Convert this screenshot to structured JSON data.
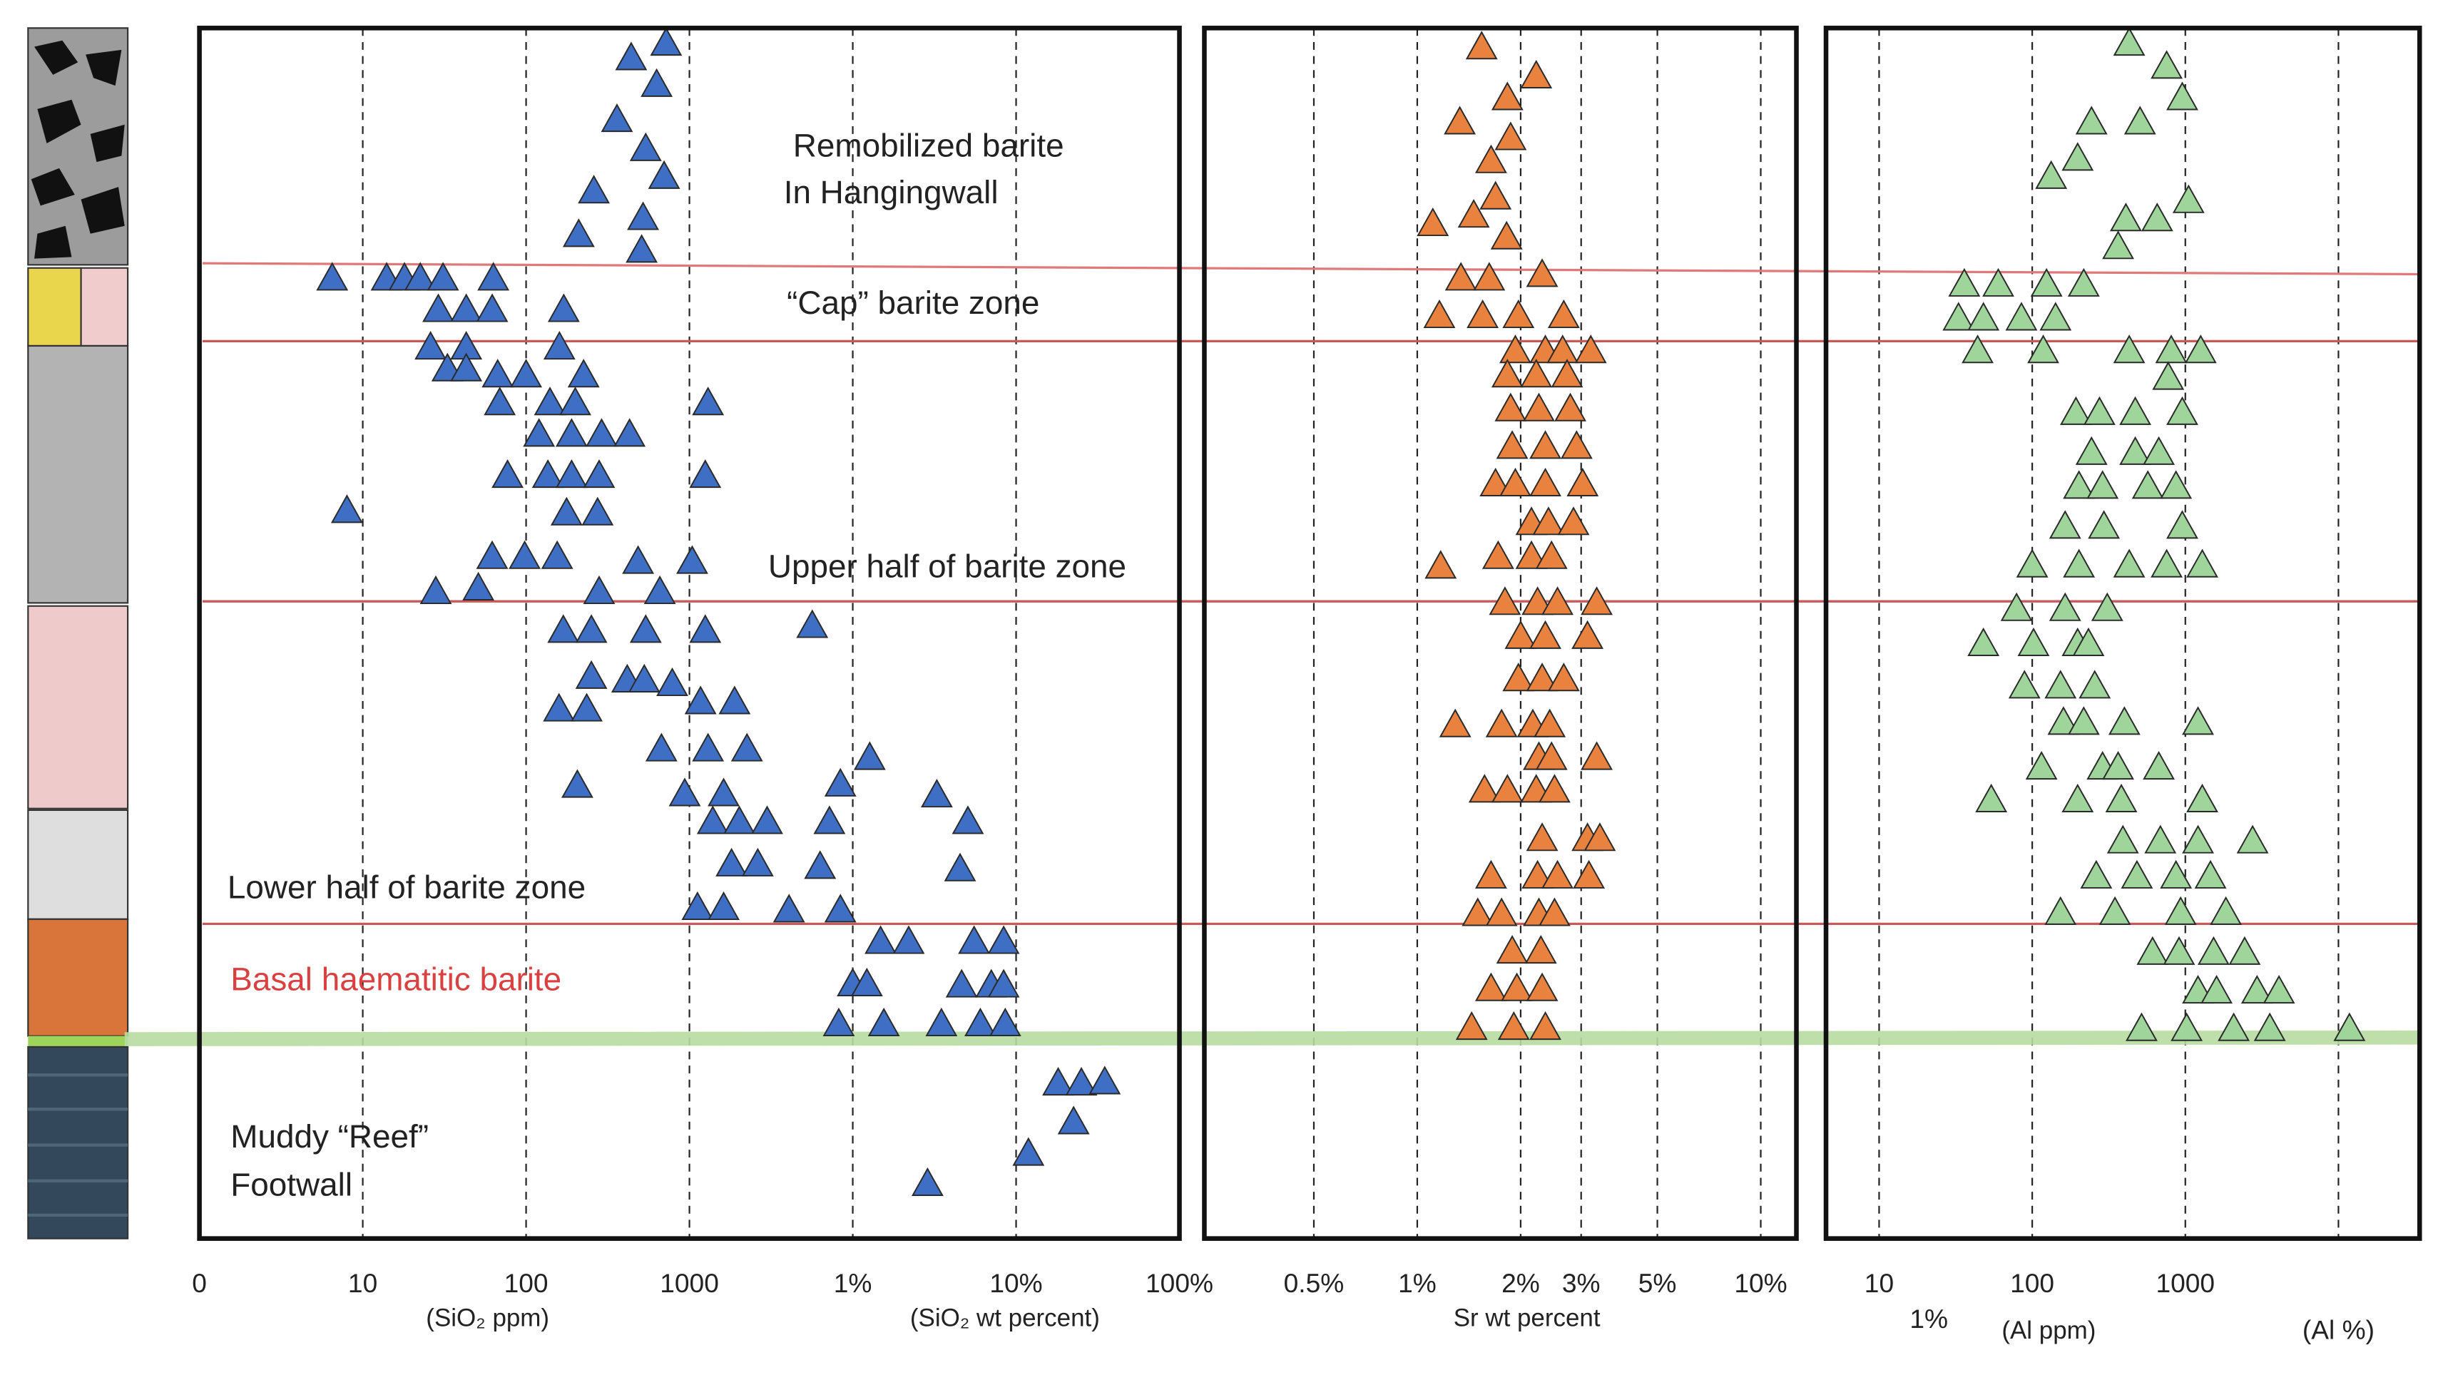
{
  "annotations": [
    {
      "text": "Remobilized barite",
      "color": "#222222"
    },
    {
      "text": "In Hangingwall",
      "color": "#222222"
    },
    {
      "text": "“Cap” barite zone",
      "color": "#222222"
    },
    {
      "text": "Upper half of barite zone",
      "color": "#222222"
    },
    {
      "text": "Lower half of barite zone",
      "color": "#222222"
    },
    {
      "text": "Basal haematitic barite",
      "color": "#d94040"
    },
    {
      "text": "Muddy “Reef”",
      "color": "#222222"
    },
    {
      "text": "Footwall",
      "color": "#222222"
    }
  ],
  "chart_data": [
    {
      "type": "scatter",
      "log_x": true,
      "grid": "x",
      "color": "#3f6fc4",
      "xlabel": [
        "(SiO₂  ppm)",
        "(SiO₂ wt percent)"
      ],
      "xlim": [
        1,
        1000000
      ],
      "ylim": [
        0,
        100
      ],
      "xticks": [
        {
          "value": 1,
          "label": "0"
        },
        10,
        100,
        1000,
        {
          "value": 10000,
          "label": "1%"
        },
        {
          "value": 100000,
          "label": "10%"
        },
        {
          "value": 1000000,
          "label": "100%"
        }
      ],
      "x": [
        720,
        440,
        630,
        360,
        540,
        700,
        260,
        520,
        210,
        510,
        6.5,
        14,
        18,
        22.5,
        31,
        63,
        29,
        43,
        62,
        170,
        26,
        43,
        160,
        33,
        43,
        67,
        100,
        225,
        69,
        140,
        200,
        1300,
        120,
        190,
        290,
        430,
        77,
        136,
        190,
        280,
        1250,
        8,
        177,
        274,
        62,
        98,
        155,
        485,
        1040,
        28,
        51,
        280,
        659,
        5650,
        169,
        251,
        540,
        1250,
        251,
        416,
        529,
        785,
        1170,
        1890,
        159,
        235,
        674,
        1300,
        2250,
        12700,
        206,
        936,
        1620,
        8400,
        32700,
        1390,
        2020,
        2990,
        7200,
        50700,
        1810,
        2620,
        6310,
        45400,
        1120,
        1620,
        4070,
        8400,
        14800,
        22000,
        55300,
        83900,
        10000,
        12200,
        46400,
        70500,
        83900,
        8210,
        15500,
        34900,
        60400,
        85800,
        181000,
        251000,
        349000,
        225000,
        119000,
        28700
      ],
      "y": [
        1.2,
        2.4,
        4.6,
        7.5,
        9.9,
        12.2,
        13.4,
        15.6,
        17,
        18.3,
        20.6,
        20.6,
        20.6,
        20.6,
        20.6,
        20.6,
        23.2,
        23.2,
        23.2,
        23.2,
        26.3,
        26.3,
        26.3,
        28.1,
        28.1,
        28.6,
        28.6,
        28.6,
        30.9,
        30.9,
        30.9,
        30.9,
        33.5,
        33.5,
        33.5,
        33.5,
        36.9,
        36.9,
        36.9,
        36.9,
        36.9,
        39.8,
        40,
        40,
        43.6,
        43.6,
        43.6,
        44,
        44,
        46.5,
        46.2,
        46.5,
        46.5,
        49.3,
        49.7,
        49.7,
        49.7,
        49.7,
        53.5,
        53.8,
        53.8,
        54.1,
        55.6,
        55.6,
        56.2,
        56.2,
        59.5,
        59.5,
        59.5,
        60.2,
        62.5,
        63.2,
        63.2,
        62.4,
        63.3,
        65.5,
        65.5,
        65.5,
        65.5,
        65.5,
        69,
        69,
        69.2,
        69.4,
        72.6,
        72.6,
        72.8,
        72.8,
        75.4,
        75.4,
        75.4,
        75.4,
        78.9,
        78.9,
        79,
        79,
        79,
        82.2,
        82.2,
        82.2,
        82.2,
        82.2,
        87.1,
        87.1,
        87,
        90.3,
        92.9,
        95.4
      ]
    },
    {
      "type": "scatter",
      "log_x": true,
      "grid": "x",
      "color": "#e9823f",
      "xlabel": [
        "Sr wt percent"
      ],
      "xlim": [
        0.24,
        12.7
      ],
      "ylim": [
        0,
        100
      ],
      "xticks": [
        {
          "value": 0.5,
          "label": "0.5%"
        },
        {
          "value": 1,
          "label": "1%"
        },
        {
          "value": 2,
          "label": "2%"
        },
        {
          "value": 3,
          "label": "3%"
        },
        {
          "value": 5,
          "label": "5%"
        },
        {
          "value": 10,
          "label": "10%"
        }
      ],
      "x": [
        1.54,
        2.22,
        1.83,
        1.33,
        1.87,
        1.64,
        1.69,
        1.11,
        1.46,
        1.82,
        1.34,
        1.62,
        2.31,
        1.16,
        1.55,
        1.97,
        2.67,
        1.93,
        2.36,
        2.65,
        3.2,
        1.83,
        2.22,
        2.73,
        1.87,
        2.26,
        2.79,
        1.89,
        2.36,
        2.91,
        1.69,
        1.93,
        2.36,
        3.03,
        2.15,
        2.41,
        2.85,
        1.17,
        1.72,
        2.15,
        2.46,
        1.8,
        2.24,
        2.56,
        3.33,
        2.0,
        2.36,
        3.13,
        1.97,
        2.31,
        2.67,
        1.29,
        1.76,
        2.17,
        2.43,
        2.26,
        2.46,
        3.33,
        1.57,
        1.83,
        2.22,
        2.51,
        2.31,
        3.13,
        3.4,
        1.64,
        2.24,
        2.56,
        3.16,
        1.5,
        1.76,
        2.26,
        2.51,
        1.89,
        2.29,
        1.64,
        1.95,
        2.31,
        1.44,
        1.91,
        2.36
      ],
      "y": [
        1.5,
        3.9,
        5.7,
        7.7,
        9,
        10.9,
        13.9,
        16.1,
        15.4,
        17.2,
        20.6,
        20.6,
        20.3,
        23.7,
        23.7,
        23.7,
        23.7,
        26.6,
        26.6,
        26.6,
        26.6,
        28.6,
        28.6,
        28.6,
        31.4,
        31.4,
        31.4,
        34.5,
        34.5,
        34.5,
        37.6,
        37.6,
        37.6,
        37.6,
        40.8,
        40.8,
        40.8,
        44.4,
        43.6,
        43.6,
        43.6,
        47.4,
        47.4,
        47.4,
        47.4,
        50.2,
        50.2,
        50.2,
        53.7,
        53.7,
        53.7,
        57.5,
        57.5,
        57.5,
        57.5,
        60.2,
        60.2,
        60.2,
        62.9,
        62.9,
        62.9,
        62.9,
        66.9,
        66.9,
        66.9,
        70,
        70,
        70,
        70,
        73.1,
        73.1,
        73.1,
        73.1,
        76.2,
        76.2,
        79.3,
        79.3,
        79.3,
        82.5,
        82.5,
        82.5
      ]
    },
    {
      "type": "scatter",
      "log_x": true,
      "grid": "x",
      "color": "#9fd49a",
      "xlabel": [
        "(Al ppm)"
      ],
      "note": "1%",
      "xlim": [
        4.5,
        33900
      ],
      "ylim": [
        0,
        100
      ],
      "xticks": [
        10,
        100,
        1000,
        {
          "value": 10000,
          "label": "(Al %)"
        }
      ],
      "x": [
        430,
        755,
        955,
        244,
        506,
        198,
        133,
        1050,
        409,
        655,
        364,
        36,
        60,
        124,
        217,
        33,
        48,
        85,
        142,
        44,
        118,
        430,
        809,
        1260,
        773,
        193,
        275,
        471,
        955,
        244,
        471,
        671,
        202,
        288,
        569,
        869,
        164,
        294,
        955,
        100,
        202,
        430,
        755,
        1290,
        79,
        164,
        309,
        48,
        102,
        198,
        233,
        89,
        153,
        256,
        160,
        217,
        400,
        1210,
        115,
        288,
        364,
        671,
        54,
        198,
        382,
        1290,
        391,
        687,
        1210,
        2750,
        262,
        483,
        869,
        1460,
        153,
        347,
        932,
        1840,
        611,
        910,
        1530,
        2440,
        1210,
        1600,
        2940,
        4090,
        518,
        1020,
        2070,
        3560,
        11800
      ],
      "y": [
        1.2,
        3.1,
        5.7,
        7.7,
        7.7,
        10.7,
        12.2,
        14.2,
        15.7,
        15.7,
        18,
        21.1,
        21.1,
        21.1,
        21.1,
        23.9,
        23.9,
        23.9,
        23.9,
        26.6,
        26.6,
        26.6,
        26.6,
        26.6,
        28.8,
        31.7,
        31.7,
        31.7,
        31.7,
        35,
        35,
        35,
        37.8,
        37.8,
        37.8,
        37.8,
        41.1,
        41.1,
        41.1,
        44.3,
        44.3,
        44.3,
        44.3,
        44.3,
        47.9,
        47.9,
        47.9,
        50.8,
        50.8,
        50.8,
        50.8,
        54.3,
        54.3,
        54.3,
        57.3,
        57.3,
        57.3,
        57.3,
        61,
        61,
        61,
        61,
        63.7,
        63.7,
        63.7,
        63.7,
        67.1,
        67.1,
        67.1,
        67.1,
        70,
        70,
        70,
        70,
        73,
        73,
        73,
        73,
        76.3,
        76.3,
        76.3,
        76.3,
        79.5,
        79.5,
        79.5,
        79.5,
        82.6,
        82.6,
        82.6,
        82.6,
        82.6
      ]
    }
  ]
}
